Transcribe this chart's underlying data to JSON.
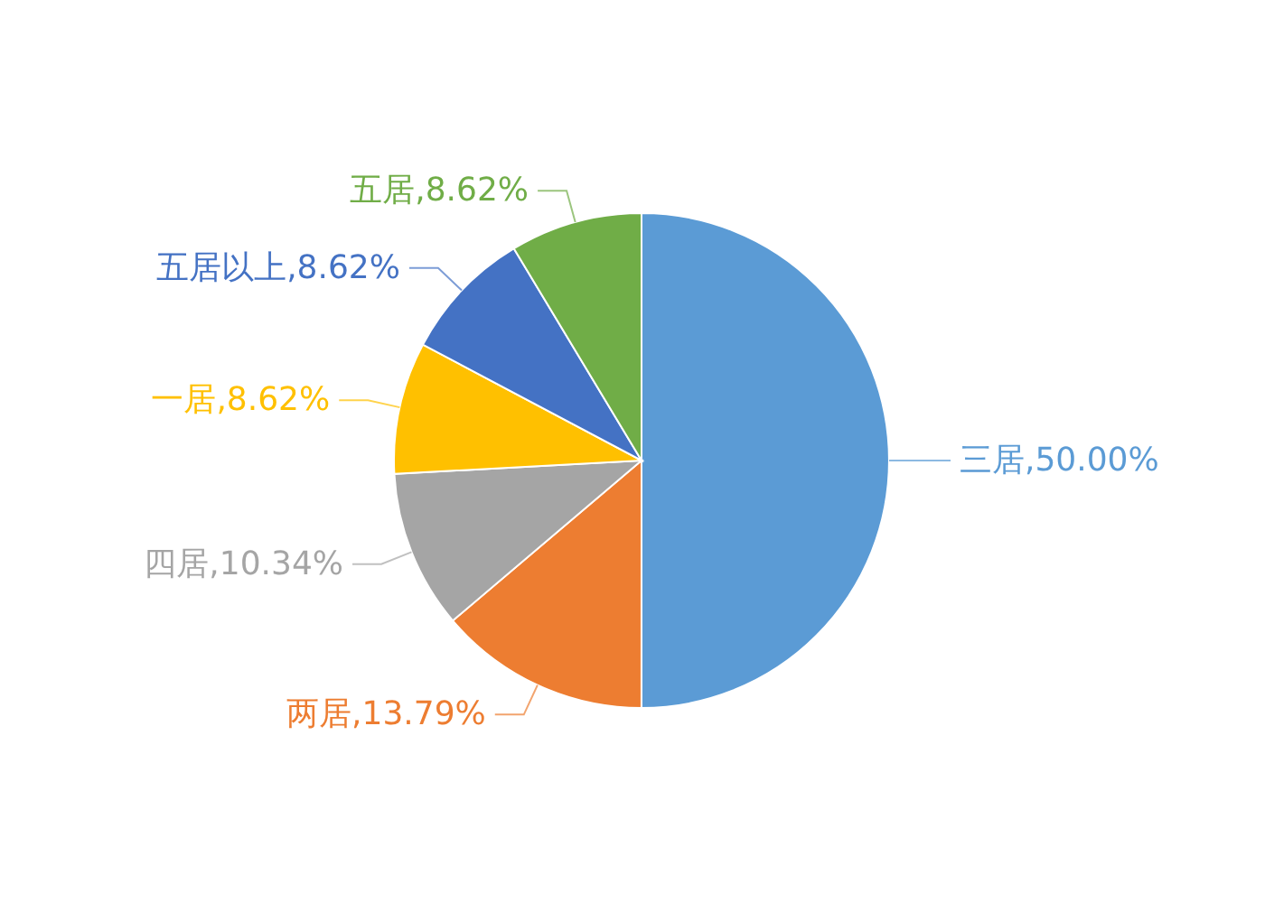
{
  "chart_data": {
    "type": "pie",
    "categories": [
      "三居",
      "两居",
      "四居",
      "一居",
      "五居以上",
      "五居"
    ],
    "values": [
      50.0,
      13.79,
      10.34,
      8.62,
      8.62,
      8.62
    ],
    "colors": [
      "#5b9bd5",
      "#ed7d31",
      "#a5a5a5",
      "#ffc000",
      "#4472c4",
      "#70ad47"
    ],
    "value_labels": [
      "50.00%",
      "13.79%",
      "10.34%",
      "8.62%",
      "8.62%",
      "8.62%"
    ]
  }
}
